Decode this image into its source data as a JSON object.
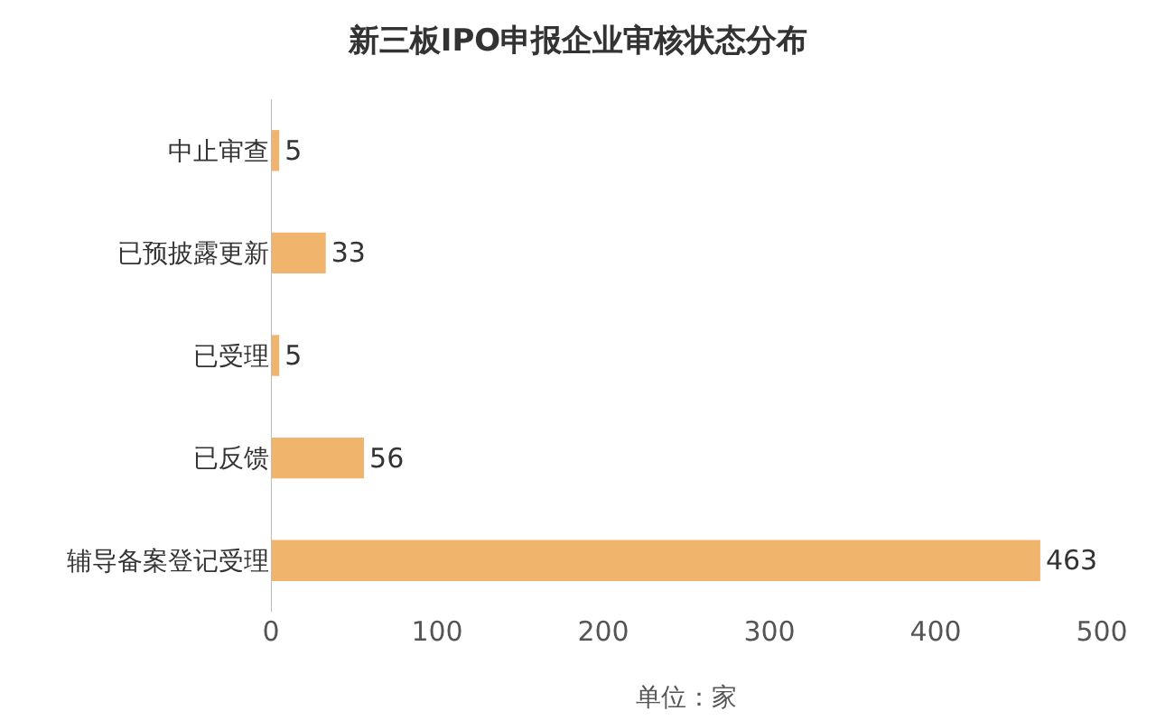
{
  "chart_data": {
    "type": "bar",
    "orientation": "horizontal",
    "title": "新三板IPO申报企业审核状态分布",
    "xlabel": "单位：家",
    "categories": [
      "中止审查",
      "已预披露更新",
      "已受理",
      "已反馈",
      "辅导备案登记受理"
    ],
    "values": [
      5,
      33,
      5,
      56,
      463
    ],
    "color": "#f0b46c",
    "xlim": [
      0,
      500
    ],
    "xticks": [
      0,
      100,
      200,
      300,
      400,
      500
    ],
    "grid": false,
    "data_labels": true
  }
}
